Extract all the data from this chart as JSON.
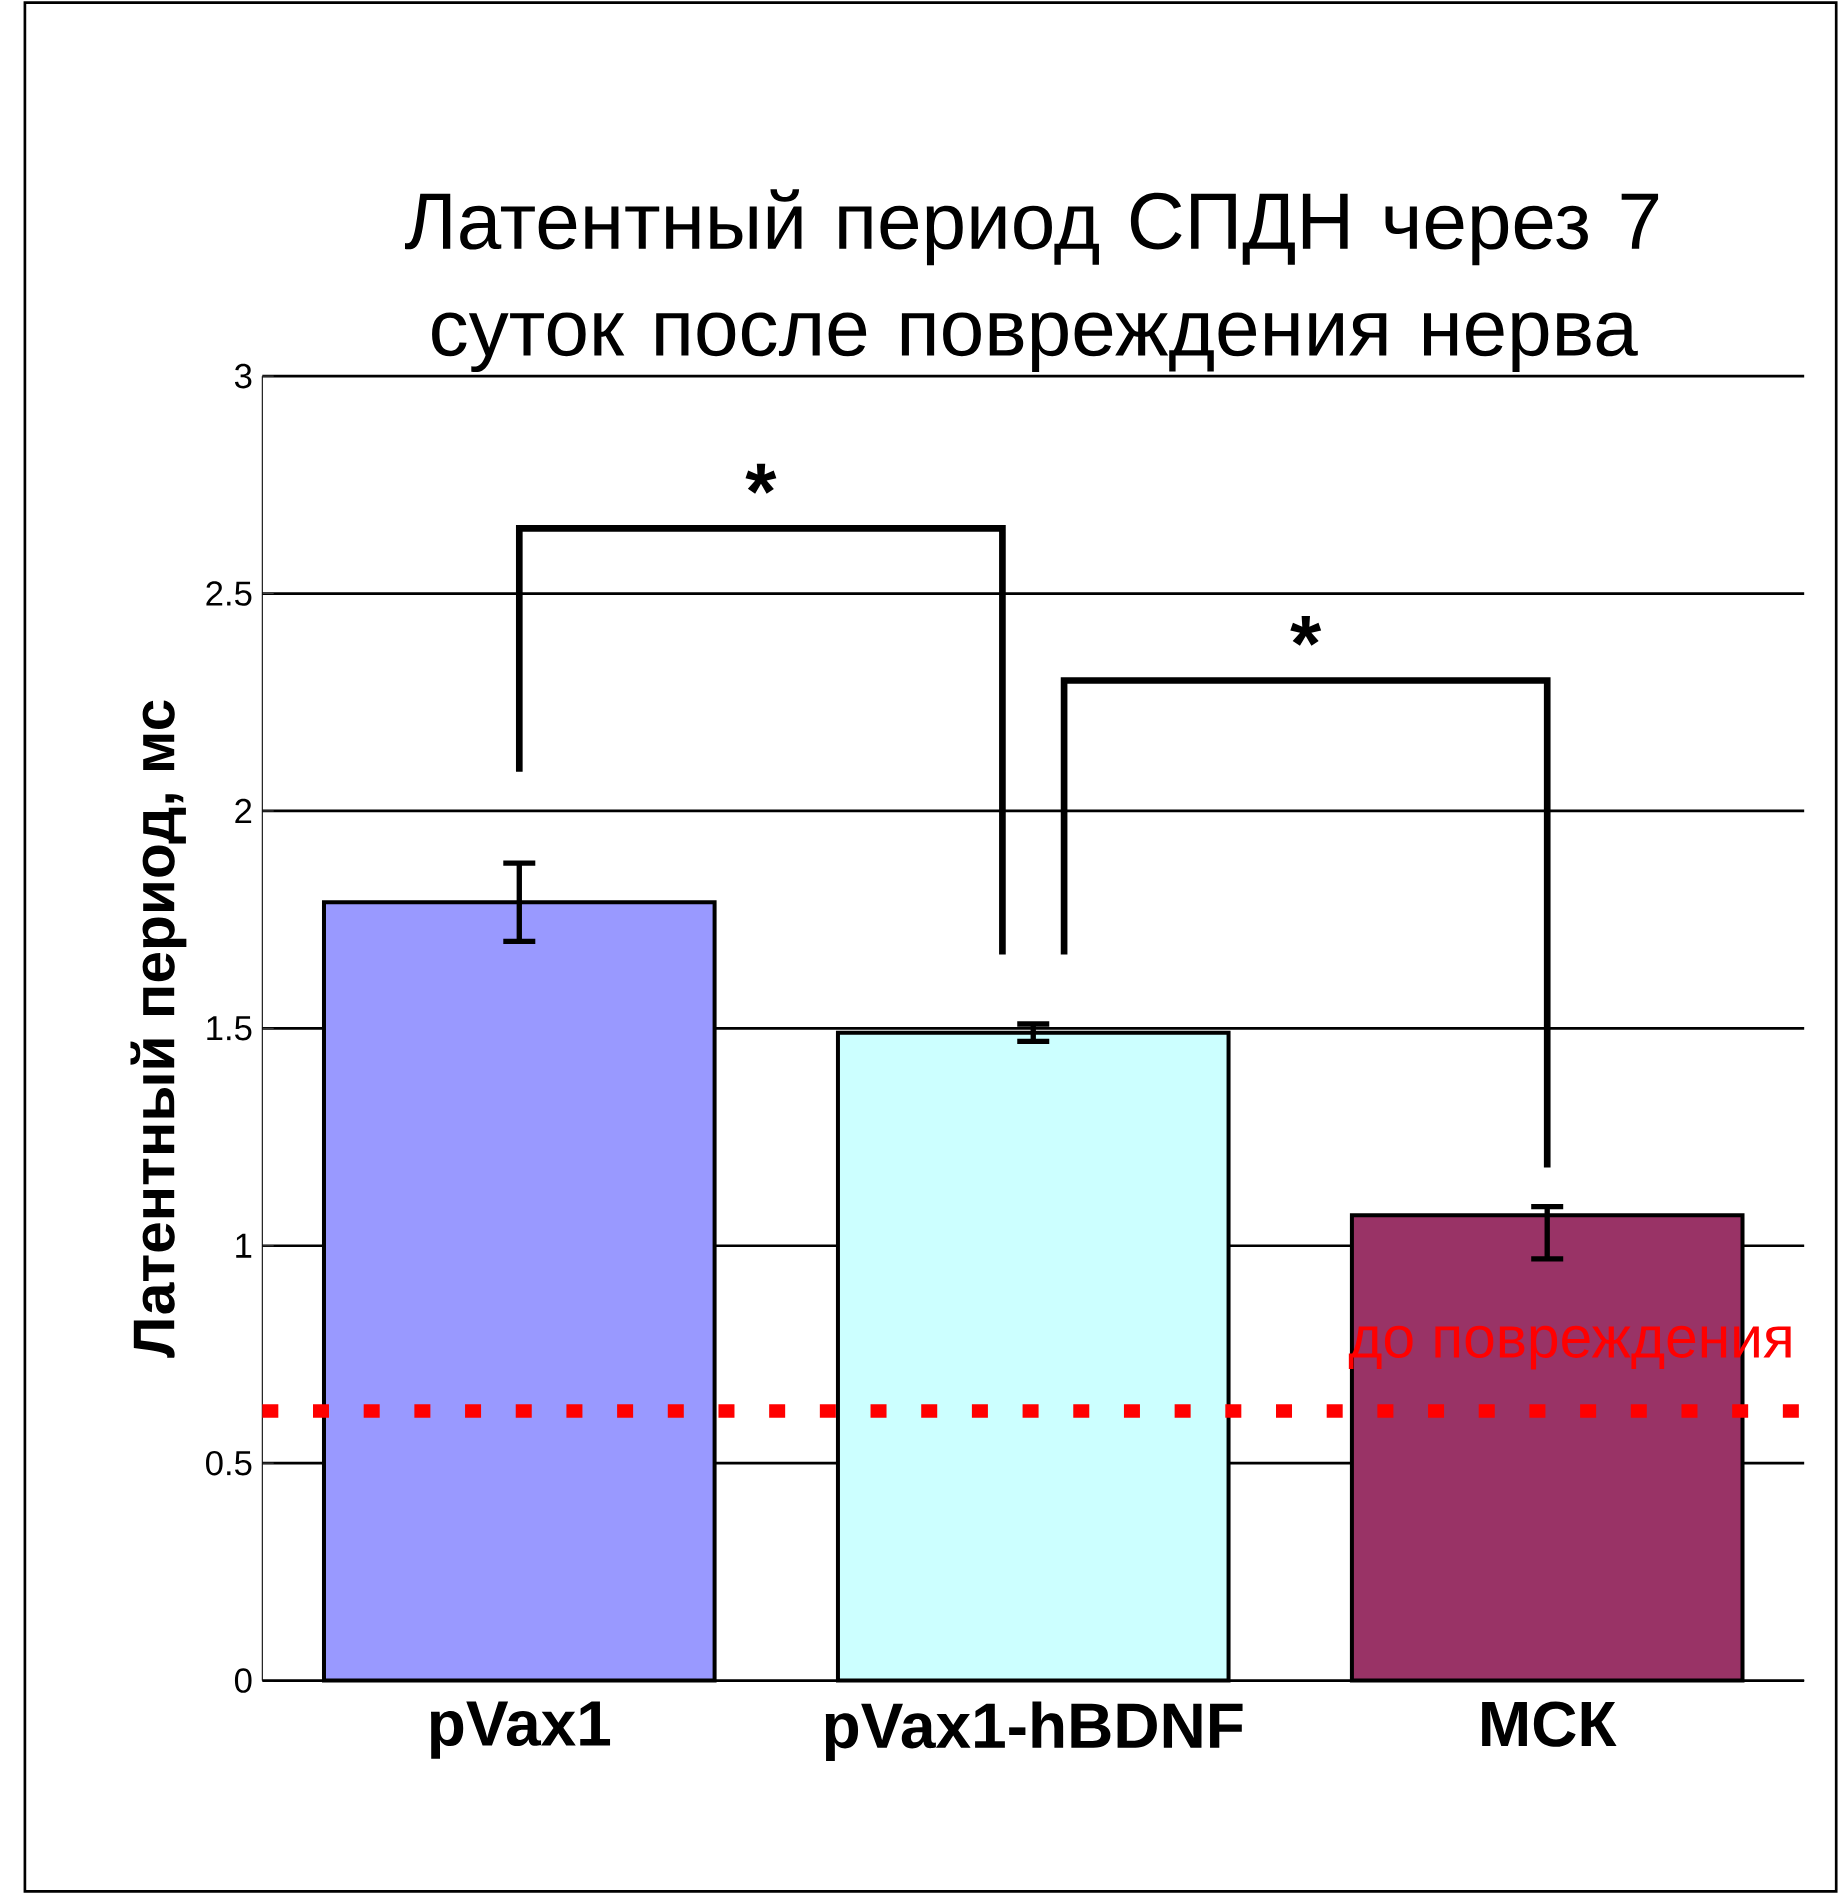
{
  "chart_data": {
    "type": "bar",
    "title": "Латентный период СПДН через 7 суток после повреждения нерва",
    "ylabel": "Латентный период, мс",
    "categories": [
      "pVax1",
      "pVax1-hBDNF",
      "МСК"
    ],
    "values": [
      1.79,
      1.49,
      1.07
    ],
    "colors": [
      "#9999ff",
      "#ccffff",
      "#993366"
    ],
    "errors": [
      0.09,
      0.02,
      [
        0.97,
        1.09
      ]
    ],
    "ylim": [
      0,
      3
    ],
    "yticks": [
      0,
      0.5,
      1,
      1.5,
      2,
      2.5,
      3
    ],
    "grid": "y",
    "ref_lines": [
      {
        "axis": "y",
        "value": 0.62,
        "label": "до повреждения",
        "color": "#ff0000",
        "line_style": "dotted"
      }
    ],
    "annotations": [
      "*",
      "*"
    ]
  }
}
